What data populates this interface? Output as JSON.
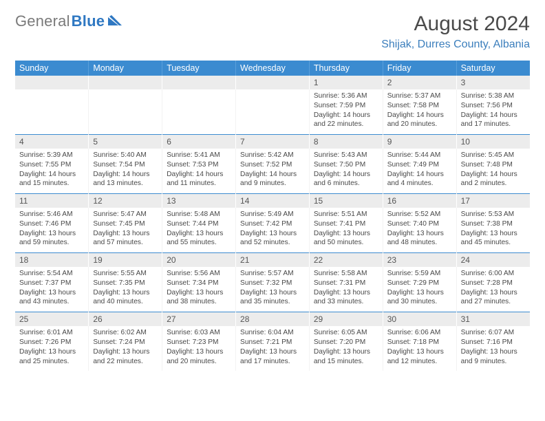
{
  "logo": {
    "word1": "General",
    "word2": "Blue"
  },
  "title": "August 2024",
  "location": "Shijak, Durres County, Albania",
  "colors": {
    "header_bg": "#3b8bd0",
    "header_text": "#ffffff",
    "daynum_bg": "#ececec",
    "daynum_text": "#555555",
    "location_text": "#3b7ebc",
    "title_text": "#4a4a4a",
    "logo_gray": "#7a7a7a",
    "logo_blue": "#2f78c2",
    "week_sep": "#3b8bd0"
  },
  "typography": {
    "title_fontsize": 30,
    "location_fontsize": 16,
    "weekday_fontsize": 12.5,
    "daynum_fontsize": 12,
    "detail_fontsize": 10.2
  },
  "weekdays": [
    "Sunday",
    "Monday",
    "Tuesday",
    "Wednesday",
    "Thursday",
    "Friday",
    "Saturday"
  ],
  "weeks": [
    [
      null,
      null,
      null,
      null,
      {
        "n": "1",
        "sr": "Sunrise: 5:36 AM",
        "ss": "Sunset: 7:59 PM",
        "d1": "Daylight: 14 hours",
        "d2": "and 22 minutes."
      },
      {
        "n": "2",
        "sr": "Sunrise: 5:37 AM",
        "ss": "Sunset: 7:58 PM",
        "d1": "Daylight: 14 hours",
        "d2": "and 20 minutes."
      },
      {
        "n": "3",
        "sr": "Sunrise: 5:38 AM",
        "ss": "Sunset: 7:56 PM",
        "d1": "Daylight: 14 hours",
        "d2": "and 17 minutes."
      }
    ],
    [
      {
        "n": "4",
        "sr": "Sunrise: 5:39 AM",
        "ss": "Sunset: 7:55 PM",
        "d1": "Daylight: 14 hours",
        "d2": "and 15 minutes."
      },
      {
        "n": "5",
        "sr": "Sunrise: 5:40 AM",
        "ss": "Sunset: 7:54 PM",
        "d1": "Daylight: 14 hours",
        "d2": "and 13 minutes."
      },
      {
        "n": "6",
        "sr": "Sunrise: 5:41 AM",
        "ss": "Sunset: 7:53 PM",
        "d1": "Daylight: 14 hours",
        "d2": "and 11 minutes."
      },
      {
        "n": "7",
        "sr": "Sunrise: 5:42 AM",
        "ss": "Sunset: 7:52 PM",
        "d1": "Daylight: 14 hours",
        "d2": "and 9 minutes."
      },
      {
        "n": "8",
        "sr": "Sunrise: 5:43 AM",
        "ss": "Sunset: 7:50 PM",
        "d1": "Daylight: 14 hours",
        "d2": "and 6 minutes."
      },
      {
        "n": "9",
        "sr": "Sunrise: 5:44 AM",
        "ss": "Sunset: 7:49 PM",
        "d1": "Daylight: 14 hours",
        "d2": "and 4 minutes."
      },
      {
        "n": "10",
        "sr": "Sunrise: 5:45 AM",
        "ss": "Sunset: 7:48 PM",
        "d1": "Daylight: 14 hours",
        "d2": "and 2 minutes."
      }
    ],
    [
      {
        "n": "11",
        "sr": "Sunrise: 5:46 AM",
        "ss": "Sunset: 7:46 PM",
        "d1": "Daylight: 13 hours",
        "d2": "and 59 minutes."
      },
      {
        "n": "12",
        "sr": "Sunrise: 5:47 AM",
        "ss": "Sunset: 7:45 PM",
        "d1": "Daylight: 13 hours",
        "d2": "and 57 minutes."
      },
      {
        "n": "13",
        "sr": "Sunrise: 5:48 AM",
        "ss": "Sunset: 7:44 PM",
        "d1": "Daylight: 13 hours",
        "d2": "and 55 minutes."
      },
      {
        "n": "14",
        "sr": "Sunrise: 5:49 AM",
        "ss": "Sunset: 7:42 PM",
        "d1": "Daylight: 13 hours",
        "d2": "and 52 minutes."
      },
      {
        "n": "15",
        "sr": "Sunrise: 5:51 AM",
        "ss": "Sunset: 7:41 PM",
        "d1": "Daylight: 13 hours",
        "d2": "and 50 minutes."
      },
      {
        "n": "16",
        "sr": "Sunrise: 5:52 AM",
        "ss": "Sunset: 7:40 PM",
        "d1": "Daylight: 13 hours",
        "d2": "and 48 minutes."
      },
      {
        "n": "17",
        "sr": "Sunrise: 5:53 AM",
        "ss": "Sunset: 7:38 PM",
        "d1": "Daylight: 13 hours",
        "d2": "and 45 minutes."
      }
    ],
    [
      {
        "n": "18",
        "sr": "Sunrise: 5:54 AM",
        "ss": "Sunset: 7:37 PM",
        "d1": "Daylight: 13 hours",
        "d2": "and 43 minutes."
      },
      {
        "n": "19",
        "sr": "Sunrise: 5:55 AM",
        "ss": "Sunset: 7:35 PM",
        "d1": "Daylight: 13 hours",
        "d2": "and 40 minutes."
      },
      {
        "n": "20",
        "sr": "Sunrise: 5:56 AM",
        "ss": "Sunset: 7:34 PM",
        "d1": "Daylight: 13 hours",
        "d2": "and 38 minutes."
      },
      {
        "n": "21",
        "sr": "Sunrise: 5:57 AM",
        "ss": "Sunset: 7:32 PM",
        "d1": "Daylight: 13 hours",
        "d2": "and 35 minutes."
      },
      {
        "n": "22",
        "sr": "Sunrise: 5:58 AM",
        "ss": "Sunset: 7:31 PM",
        "d1": "Daylight: 13 hours",
        "d2": "and 33 minutes."
      },
      {
        "n": "23",
        "sr": "Sunrise: 5:59 AM",
        "ss": "Sunset: 7:29 PM",
        "d1": "Daylight: 13 hours",
        "d2": "and 30 minutes."
      },
      {
        "n": "24",
        "sr": "Sunrise: 6:00 AM",
        "ss": "Sunset: 7:28 PM",
        "d1": "Daylight: 13 hours",
        "d2": "and 27 minutes."
      }
    ],
    [
      {
        "n": "25",
        "sr": "Sunrise: 6:01 AM",
        "ss": "Sunset: 7:26 PM",
        "d1": "Daylight: 13 hours",
        "d2": "and 25 minutes."
      },
      {
        "n": "26",
        "sr": "Sunrise: 6:02 AM",
        "ss": "Sunset: 7:24 PM",
        "d1": "Daylight: 13 hours",
        "d2": "and 22 minutes."
      },
      {
        "n": "27",
        "sr": "Sunrise: 6:03 AM",
        "ss": "Sunset: 7:23 PM",
        "d1": "Daylight: 13 hours",
        "d2": "and 20 minutes."
      },
      {
        "n": "28",
        "sr": "Sunrise: 6:04 AM",
        "ss": "Sunset: 7:21 PM",
        "d1": "Daylight: 13 hours",
        "d2": "and 17 minutes."
      },
      {
        "n": "29",
        "sr": "Sunrise: 6:05 AM",
        "ss": "Sunset: 7:20 PM",
        "d1": "Daylight: 13 hours",
        "d2": "and 15 minutes."
      },
      {
        "n": "30",
        "sr": "Sunrise: 6:06 AM",
        "ss": "Sunset: 7:18 PM",
        "d1": "Daylight: 13 hours",
        "d2": "and 12 minutes."
      },
      {
        "n": "31",
        "sr": "Sunrise: 6:07 AM",
        "ss": "Sunset: 7:16 PM",
        "d1": "Daylight: 13 hours",
        "d2": "and 9 minutes."
      }
    ]
  ]
}
